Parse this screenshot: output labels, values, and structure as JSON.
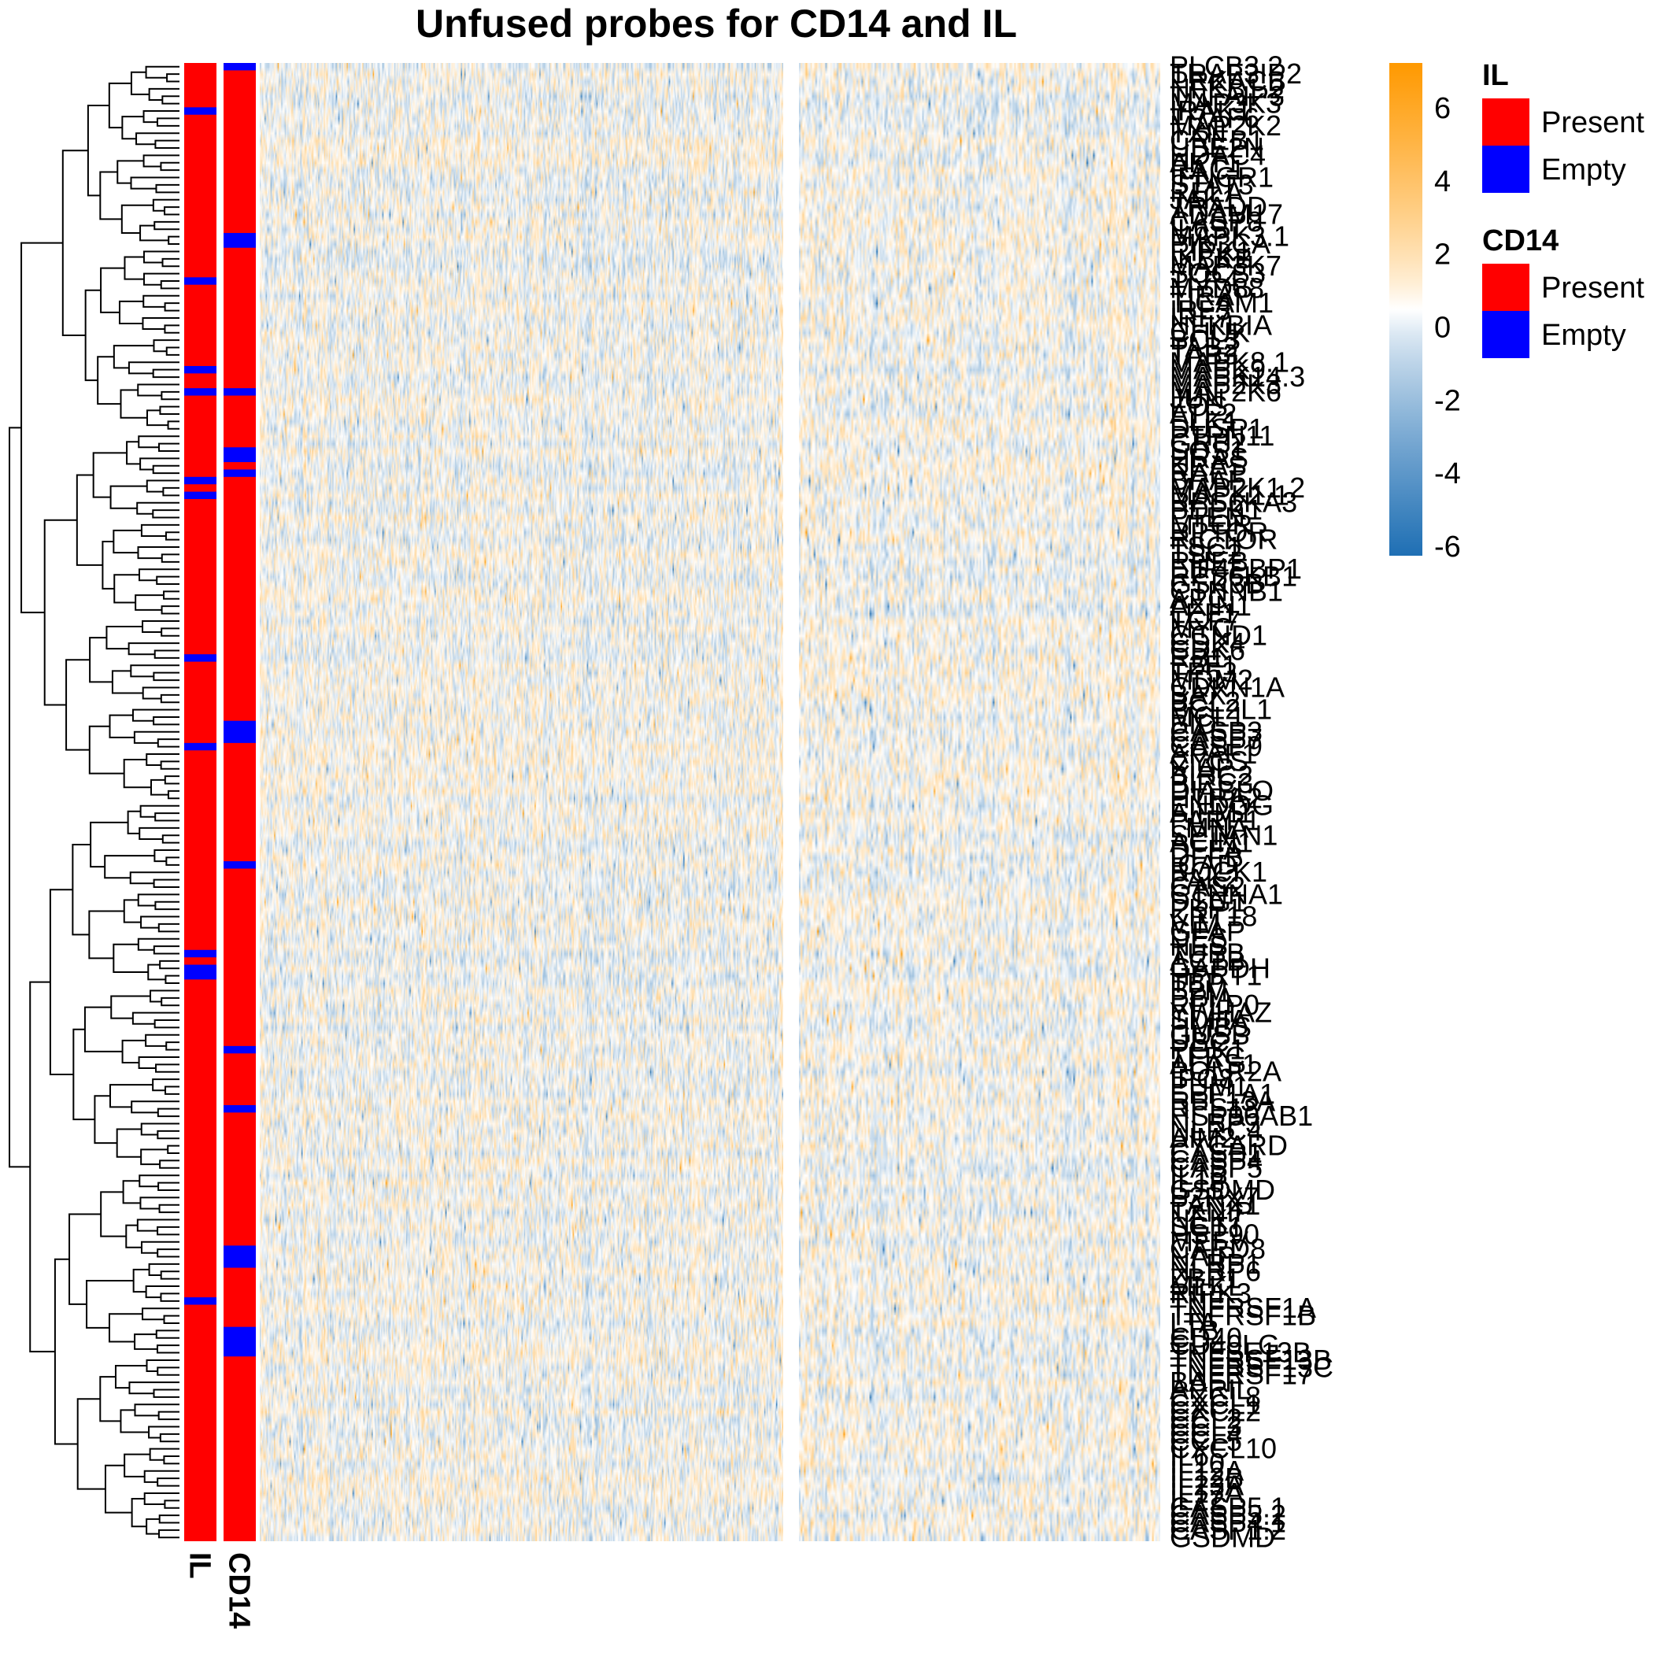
{
  "chart_data": {
    "type": "heatmap",
    "title": "Unfused probes for CD14 and IL",
    "row_count": 200,
    "column_split": [
      440,
      220
    ],
    "color_scale": {
      "domain": [
        -6,
        -4,
        -2,
        0,
        2,
        4,
        6
      ],
      "tick_labels": [
        "-6",
        "-4",
        "-2",
        "0",
        "2",
        "4",
        "6"
      ],
      "colors": {
        "low": "#1f6fb4",
        "mid": "#ffffff",
        "high": "#ff9900"
      }
    },
    "annotations": [
      {
        "name": "IL",
        "label": "IL",
        "empty_segments": [
          [
            6,
            7
          ],
          [
            29,
            30
          ],
          [
            41,
            42
          ],
          [
            44,
            45
          ],
          [
            56,
            57
          ],
          [
            58,
            59
          ],
          [
            80,
            81
          ],
          [
            92,
            93
          ],
          [
            120,
            121
          ],
          [
            122,
            124
          ],
          [
            167,
            168
          ]
        ]
      },
      {
        "name": "CD14",
        "label": "CD14",
        "empty_segments": [
          [
            0,
            1
          ],
          [
            23,
            25
          ],
          [
            44,
            45
          ],
          [
            52,
            54
          ],
          [
            55,
            56
          ],
          [
            89,
            92
          ],
          [
            108,
            109
          ],
          [
            133,
            134
          ],
          [
            141,
            142
          ],
          [
            160,
            163
          ],
          [
            171,
            175
          ]
        ]
      }
    ],
    "annotation_legends": [
      {
        "title": "IL",
        "entries": [
          {
            "label": "Present",
            "color": "#ff0000"
          },
          {
            "label": "Empty",
            "color": "#0000ff"
          }
        ]
      },
      {
        "title": "CD14",
        "entries": [
          {
            "label": "Present",
            "color": "#ff0000"
          },
          {
            "label": "Empty",
            "color": "#0000ff"
          }
        ]
      }
    ],
    "row_labels": [
      "PLCB3.2",
      "TRAF3IP2",
      "PRKACB",
      "NFKB1.2",
      "TNFAIP3",
      "MAP3K3",
      "IRAK1",
      "TRAF6",
      "MAP2K2",
      "TXN",
      "CREB1",
      "UBE2N",
      "HDAC4",
      "AKT1",
      "RAC1",
      "IFNGR1",
      "STAT3",
      "RELA",
      "JAK1",
      "TRADD",
      "ADAM17",
      "CASP8",
      "IL6ST",
      "MAPK3.1",
      "PIK3CA",
      "RIPK1",
      "IKBKB",
      "MAP3K7",
      "SOCS3",
      "TLR4",
      "MYD88",
      "TIRAP",
      "TICAM1",
      "IRF3",
      "IRF7",
      "NFKBIA",
      "CHUK",
      "BCL3",
      "TAB2",
      "TAB3",
      "MAPK8.1",
      "MAPK9",
      "MAPK14.3",
      "MAP2K3",
      "MAP2K6",
      "JUN",
      "FOS",
      "ATF2",
      "ELK1",
      "DUSP1",
      "PTPN11",
      "GRB2",
      "SOS1",
      "HRAS",
      "KRAS",
      "RAF1",
      "BRAF",
      "MAP2K1.2",
      "MAPK1.1",
      "RPS6KA3",
      "PDPK1",
      "PTEN",
      "MTOR",
      "RPTOR",
      "RICTOR",
      "TSC1",
      "TSC2",
      "RHEB",
      "EIF4EBP1",
      "RPS6KB1",
      "GSK3B",
      "CTNNB1",
      "APC",
      "AXIN1",
      "LEF1",
      "TCF7",
      "MYC",
      "CCND1",
      "CDK4",
      "CDK6",
      "RB1",
      "E2F1",
      "TP53",
      "MDM2",
      "CDKN1A",
      "BAX",
      "BCL2",
      "BCL2L1",
      "MCL1",
      "BID",
      "CASP3",
      "CASP7",
      "CASP9",
      "APAF1",
      "CYCS",
      "XIAP",
      "BIRC2",
      "BIRC3",
      "DIABLO",
      "HTRA2",
      "ENDOG",
      "AIFM1",
      "PARP1",
      "LMNA",
      "SPTAN1",
      "ACIN1",
      "DFFA",
      "DFFB",
      "ICAD",
      "ROCK1",
      "PAK2",
      "GAS2",
      "CTNNA1",
      "DSG1",
      "PKP1",
      "KRT18",
      "VIM",
      "GFAP",
      "DES",
      "NES",
      "TUBB",
      "ACTB",
      "GAPDH",
      "HPRT1",
      "TBP",
      "B2M",
      "PPIA",
      "RPLP0",
      "YWHAZ",
      "SDHA",
      "HMBS",
      "GUSB",
      "UBC",
      "PGK1",
      "TFRC",
      "ALAS1",
      "POLR2A",
      "IPO8",
      "PUM1",
      "EEF1A1",
      "RPL13A",
      "RPS18",
      "HSP90AB1",
      "NLRP3",
      "NLRC4",
      "AIM2",
      "PYCARD",
      "CASP1",
      "CASP4",
      "CASP5",
      "IL1B",
      "IL18",
      "GSDMD",
      "P2RX7",
      "PANX1",
      "TXNIP",
      "NEK7",
      "SGT1",
      "HSP90",
      "MEFV",
      "CARD8",
      "NAIP",
      "NLRP1",
      "NLRP6",
      "ZBP1",
      "MLKL",
      "RIPK3",
      "TNF",
      "TNFRSF1A",
      "TNFRSF1B",
      "LTA",
      "LTB",
      "CD40",
      "CD40LG",
      "TNFSF13B",
      "TNFRSF13B",
      "TNFRSF13C",
      "TNFRSF17",
      "BAFF",
      "APRIL",
      "CXCL8",
      "CXCL1",
      "CXCL2",
      "CCL2",
      "CCL3",
      "CCL4",
      "CCL5",
      "CXCL10",
      "IL6",
      "IL10",
      "IL12A",
      "IL12B",
      "IL23A",
      "IL17A",
      "IL22",
      "CASP5.1",
      "CASP5.2",
      "CASP4.1",
      "CASP1.2",
      "GSDMD"
    ]
  }
}
